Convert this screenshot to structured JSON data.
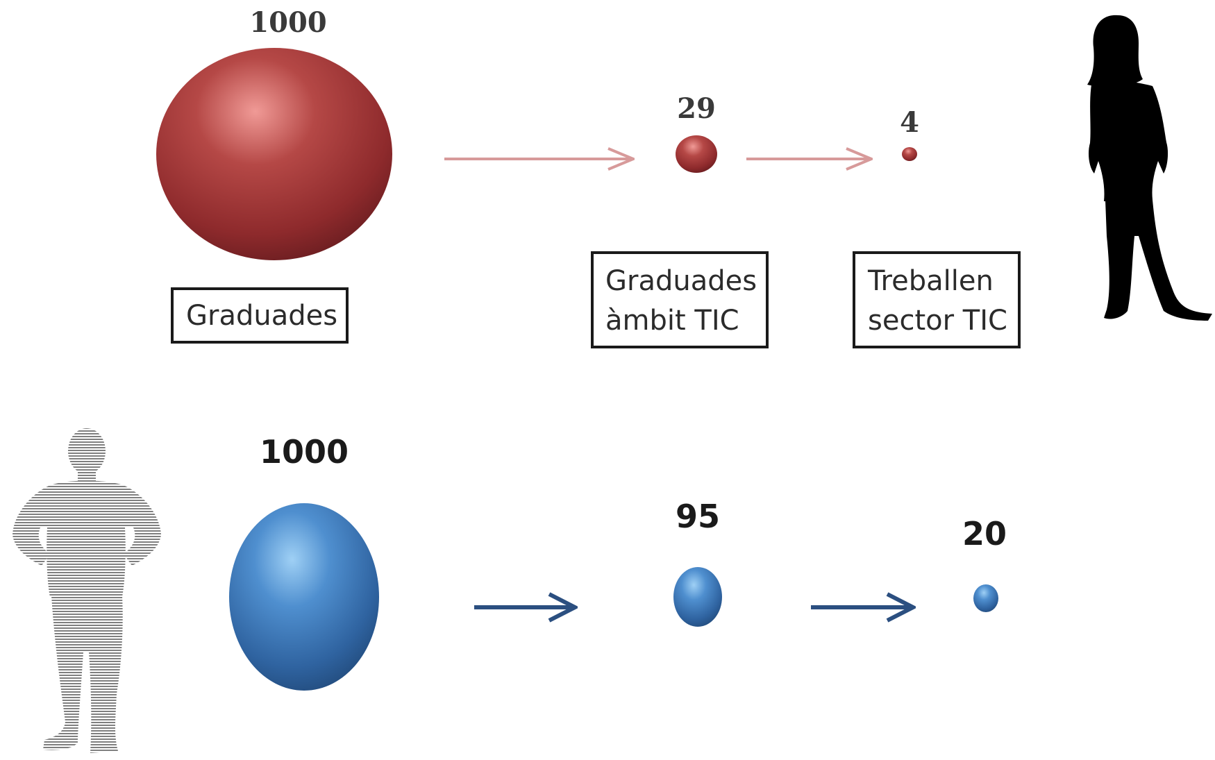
{
  "female": {
    "values": [
      "1000",
      "29",
      "4"
    ],
    "labels": {
      "graduades": [
        "Graduades"
      ],
      "ambit": [
        "Graduades",
        "àmbit TIC"
      ],
      "sector": [
        "Treballen",
        "sector TIC"
      ]
    },
    "color": "#a8383a"
  },
  "male": {
    "values": [
      "1000",
      "95",
      "20"
    ],
    "color": "#3f7bbf"
  },
  "colors": {
    "red_arrow": "#d79a9a",
    "blue_arrow": "#2b4f80",
    "silhouette_female": "#000000",
    "silhouette_male": "#7f7f7f"
  }
}
